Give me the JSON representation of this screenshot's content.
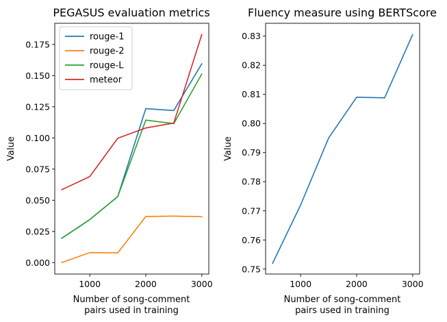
{
  "chart_data": [
    {
      "type": "line",
      "title": "PEGASUS evaluation metrics",
      "xlabel": [
        "Number of song-comment",
        "pairs used in training"
      ],
      "ylabel": "Value",
      "x": [
        500,
        1000,
        1500,
        2000,
        2500,
        3000
      ],
      "xlim": [
        375,
        3125
      ],
      "ylim": [
        -0.0092,
        0.192
      ],
      "xticks": [
        1000,
        2000,
        3000
      ],
      "yticks": [
        0.0,
        0.025,
        0.05,
        0.075,
        0.1,
        0.125,
        0.15,
        0.175
      ],
      "ytick_labels": [
        "0.000",
        "0.025",
        "0.050",
        "0.075",
        "0.100",
        "0.125",
        "0.150",
        "0.175"
      ],
      "legend_position": "top-left",
      "grid": false,
      "series": [
        {
          "name": "rouge-1",
          "color": "#1f77b4",
          "values": [
            0.0195,
            0.0345,
            0.053,
            0.1235,
            0.122,
            0.1595
          ]
        },
        {
          "name": "rouge-2",
          "color": "#ff7f0e",
          "values": [
            0.0,
            0.008,
            0.0078,
            0.037,
            0.0373,
            0.0368
          ]
        },
        {
          "name": "rouge-L",
          "color": "#2ca02c",
          "values": [
            0.0195,
            0.0345,
            0.053,
            0.1143,
            0.1115,
            0.1513
          ]
        },
        {
          "name": "meteor",
          "color": "#d62728",
          "values": [
            0.0585,
            0.069,
            0.0998,
            0.108,
            0.112,
            0.183
          ]
        }
      ]
    },
    {
      "type": "line",
      "title": "Fluency measure using BERTScore",
      "xlabel": [
        "Number of song-comment",
        "pairs used in training"
      ],
      "ylabel": "Value",
      "x": [
        500,
        1000,
        1500,
        2000,
        2500,
        3000
      ],
      "xlim": [
        375,
        3125
      ],
      "ylim": [
        0.7483,
        0.8344
      ],
      "xticks": [
        1000,
        2000,
        3000
      ],
      "yticks": [
        0.75,
        0.76,
        0.77,
        0.78,
        0.79,
        0.8,
        0.81,
        0.82,
        0.83
      ],
      "ytick_labels": [
        "0.75",
        "0.76",
        "0.77",
        "0.78",
        "0.79",
        "0.80",
        "0.81",
        "0.82",
        "0.83"
      ],
      "grid": false,
      "series": [
        {
          "color": "#1f77b4",
          "values": [
            0.752,
            0.772,
            0.795,
            0.809,
            0.8088,
            0.8305
          ]
        }
      ]
    }
  ]
}
